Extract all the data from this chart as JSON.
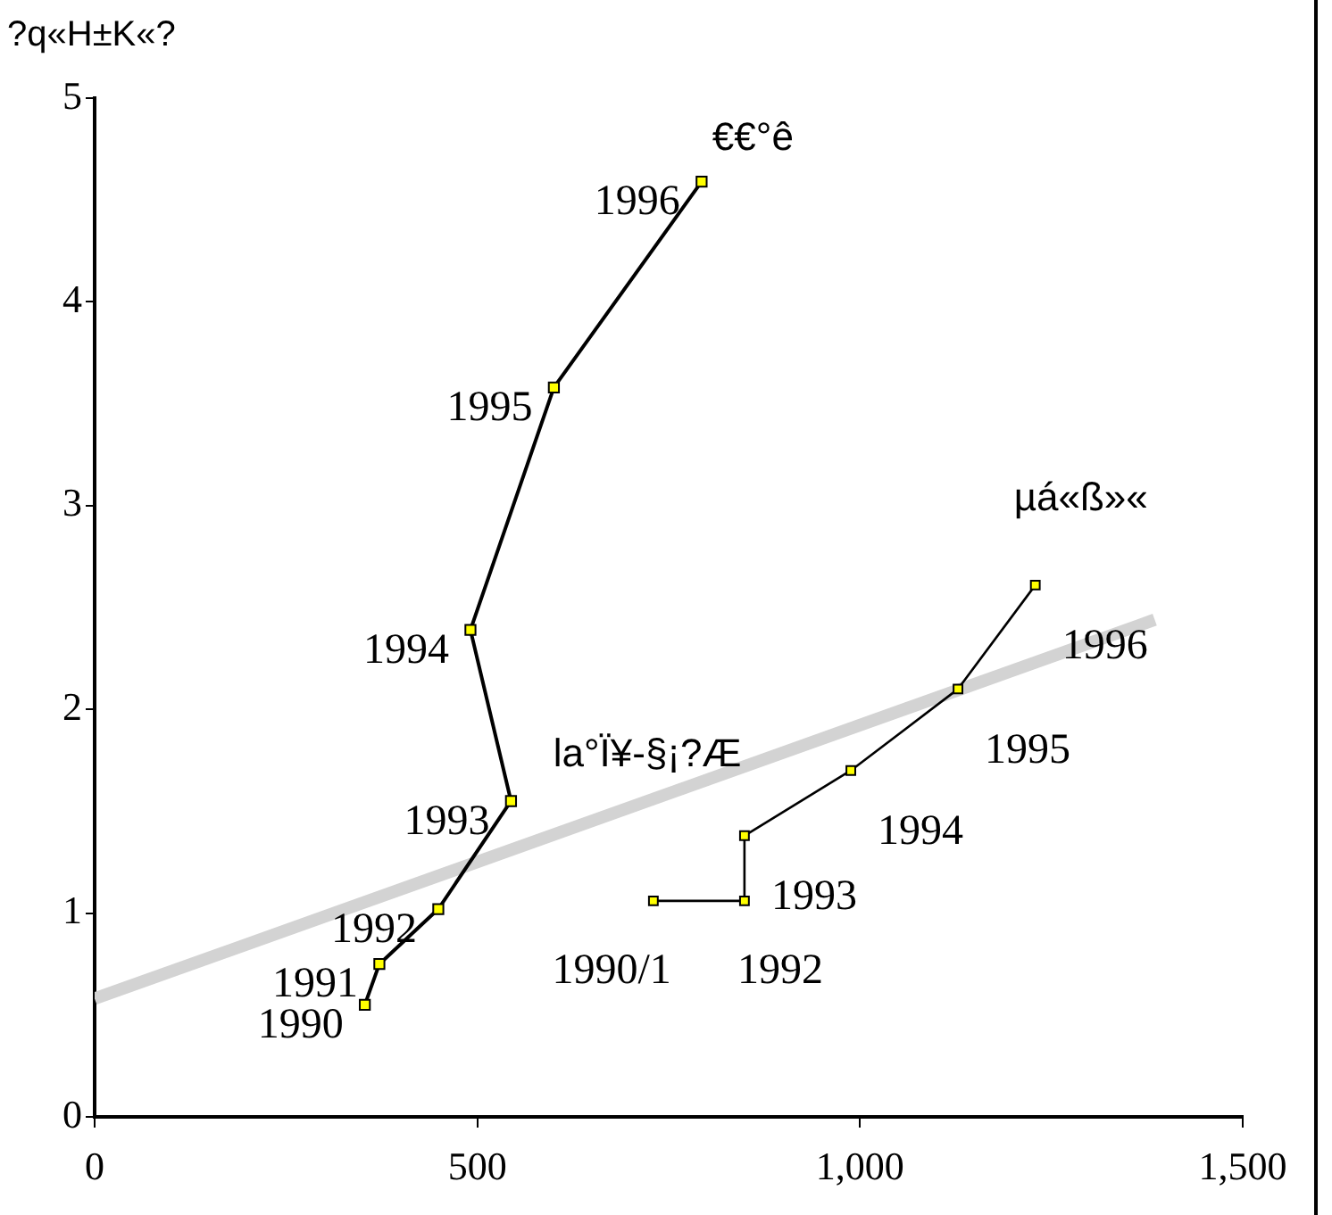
{
  "chart_data": {
    "type": "line",
    "ylabel": "?q«H±K«?",
    "xlim": [
      0,
      1500
    ],
    "xticks": [
      0,
      500,
      {
        "value": 1000,
        "label": "1,000"
      },
      {
        "value": 1500,
        "label": "1,500"
      }
    ],
    "ylim": [
      0,
      5
    ],
    "yticks": [
      0,
      1,
      2,
      3,
      4,
      5
    ],
    "grid": false,
    "legend": false,
    "marker": "square",
    "series": [
      {
        "name": "€€°ê",
        "color": "#000000",
        "colors": [
          "#ffff00",
          "#ffff00",
          "#ffff00",
          "#ffff00",
          "#ffff00",
          "#ffff00",
          "#ffff00"
        ],
        "x": [
          353,
          372,
          449,
          544,
          491,
          600,
          793
        ],
        "values": [
          0.55,
          0.75,
          1.02,
          1.55,
          2.39,
          3.58,
          4.59
        ]
      },
      {
        "name": "µá«ß»«",
        "color": "#000000",
        "colors": [
          "#ffff00",
          "#ffff00",
          "#ffff00",
          "#ffff00",
          "#ffff00",
          "#ffff00"
        ],
        "x": [
          730,
          849,
          849,
          988,
          1128,
          1229
        ],
        "values": [
          1.06,
          1.06,
          1.38,
          1.7,
          2.1,
          2.61
        ]
      },
      {
        "name": "la°Ï¥-§¡?Æ",
        "color": "#d3d3d3",
        "marker": "none",
        "x": [
          0,
          1385
        ],
        "values": [
          0.58,
          2.44
        ]
      }
    ],
    "annotations": [
      {
        "text": "1990",
        "x": 353,
        "y": 0.55
      },
      {
        "text": "1991",
        "x": 372,
        "y": 0.75
      },
      {
        "text": "1992",
        "x": 449,
        "y": 1.02
      },
      {
        "text": "1993",
        "x": 544,
        "y": 1.55
      },
      {
        "text": "1994",
        "x": 491,
        "y": 2.39
      },
      {
        "text": "1995",
        "x": 600,
        "y": 3.58
      },
      {
        "text": "1996",
        "x": 793,
        "y": 4.59
      },
      {
        "text": "1990/1",
        "x": 730,
        "y": 1.06
      },
      {
        "text": "1992",
        "x": 849,
        "y": 1.06
      },
      {
        "text": "1993",
        "x": 849,
        "y": 1.38
      },
      {
        "text": "1994",
        "x": 988,
        "y": 1.7
      },
      {
        "text": "1995",
        "x": 1128,
        "y": 2.1
      },
      {
        "text": "1996",
        "x": 1229,
        "y": 2.61
      }
    ]
  }
}
